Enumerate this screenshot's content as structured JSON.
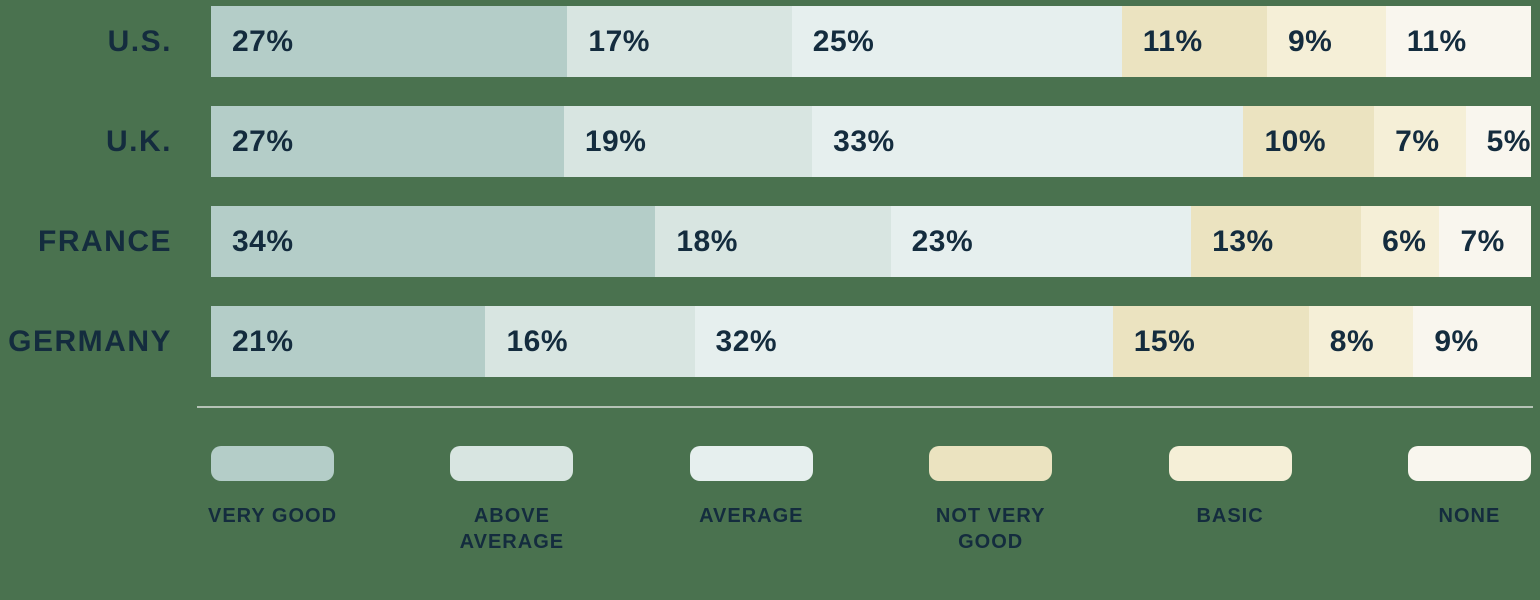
{
  "colors": {
    "background": "#4a724f",
    "text": "#142c3e",
    "divider": "#b5c2b6"
  },
  "chart_data": {
    "type": "bar",
    "orientation": "horizontal",
    "stacked": true,
    "unit": "%",
    "categories": [
      "VERY GOOD",
      "ABOVE AVERAGE",
      "AVERAGE",
      "NOT VERY GOOD",
      "BASIC",
      "NONE"
    ],
    "category_colors": [
      "#b4cdc8",
      "#d8e5e1",
      "#e6efee",
      "#ebe3c0",
      "#f5efd7",
      "#f9f6ee"
    ],
    "rows": [
      {
        "label": "U.S.",
        "values": [
          27,
          17,
          25,
          11,
          9,
          11
        ]
      },
      {
        "label": "U.K.",
        "values": [
          27,
          19,
          33,
          10,
          7,
          5
        ]
      },
      {
        "label": "FRANCE",
        "values": [
          34,
          18,
          23,
          13,
          6,
          7
        ]
      },
      {
        "label": "GERMANY",
        "values": [
          21,
          16,
          32,
          15,
          8,
          9
        ]
      }
    ],
    "legend_position": "bottom",
    "value_label_style": "inside-start"
  }
}
